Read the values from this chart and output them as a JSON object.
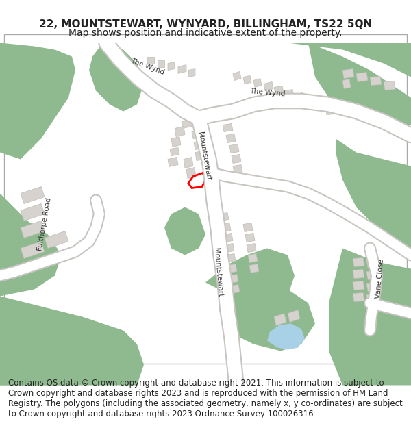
{
  "title_line1": "22, MOUNTSTEWART, WYNYARD, BILLINGHAM, TS22 5QN",
  "title_line2": "Map shows position and indicative extent of the property.",
  "footer_text": "Contains OS data © Crown copyright and database right 2021. This information is subject to Crown copyright and database rights 2023 and is reproduced with the permission of HM Land Registry. The polygons (including the associated geometry, namely x, y co-ordinates) are subject to Crown copyright and database rights 2023 Ordnance Survey 100026316.",
  "bg_color": "#f0ede8",
  "green_color": "#8fba8f",
  "road_color": "#ffffff",
  "building_color": "#d6d3ce",
  "building_edge_color": "#c0bdb8",
  "red_polygon_color": "#ff0000",
  "blue_color": "#a8d0e6",
  "map_bg": "#f5f3f0",
  "title_fontsize": 11,
  "subtitle_fontsize": 10,
  "footer_fontsize": 8.5
}
